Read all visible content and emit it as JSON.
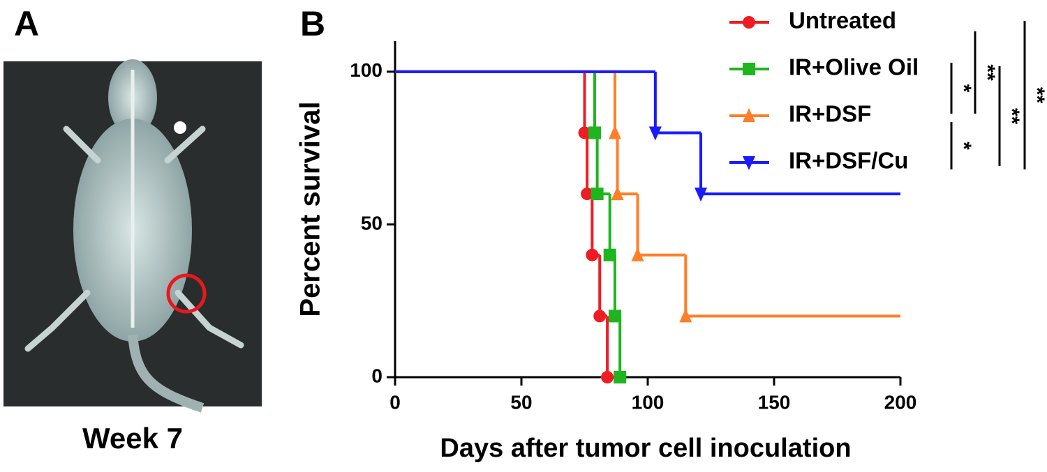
{
  "panel_a": {
    "label": "A",
    "caption": "Week 7"
  },
  "chart_data": {
    "type": "line",
    "step": true,
    "panel_label": "B",
    "xlabel": "Days after tumor cell inoculation",
    "ylabel": "Percent survival",
    "xlim": [
      0,
      200
    ],
    "ylim": [
      0,
      110
    ],
    "xticks": [
      0,
      50,
      100,
      150,
      200
    ],
    "yticks": [
      0,
      50,
      100
    ],
    "series": [
      {
        "name": "Untreated",
        "color": "#f01c24",
        "marker": "circle",
        "x": [
          0,
          75,
          76,
          78,
          81,
          84
        ],
        "values": [
          100,
          80,
          60,
          40,
          20,
          0
        ]
      },
      {
        "name": "IR+Olive Oil",
        "color": "#1fb51f",
        "marker": "square",
        "x": [
          0,
          79,
          80,
          85,
          87,
          89
        ],
        "values": [
          100,
          80,
          60,
          40,
          20,
          0
        ]
      },
      {
        "name": "IR+DSF",
        "color": "#ff7f27",
        "marker": "triangle-up",
        "x": [
          0,
          87,
          88,
          96,
          115,
          200
        ],
        "values": [
          100,
          80,
          60,
          40,
          20,
          20
        ]
      },
      {
        "name": "IR+DSF/Cu",
        "color": "#1a1aff",
        "marker": "triangle-down",
        "x": [
          0,
          103,
          121,
          200
        ],
        "values": [
          100,
          80,
          60,
          60
        ]
      }
    ],
    "annotations": [
      {
        "label": "*"
      },
      {
        "label": "*"
      },
      {
        "label": "**"
      },
      {
        "label": "**"
      },
      {
        "label": "**"
      }
    ]
  }
}
